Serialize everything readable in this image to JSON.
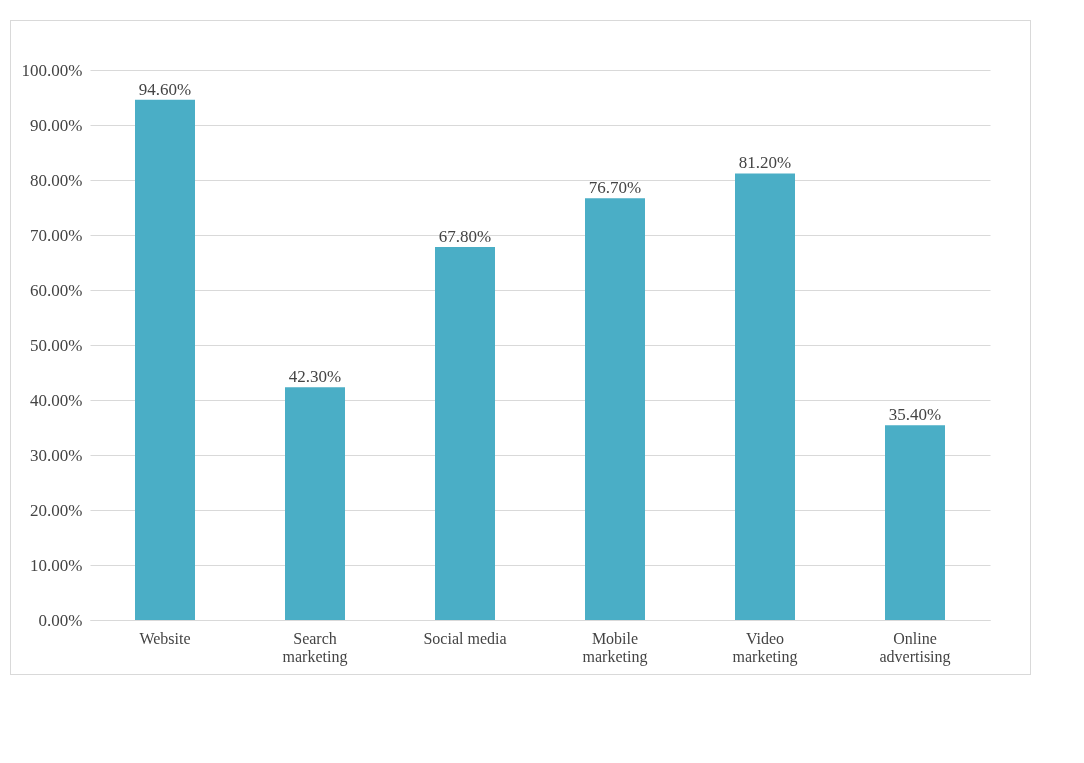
{
  "chart_data": {
    "type": "bar",
    "categories": [
      "Website",
      "Search marketing",
      "Social media",
      "Mobile marketing",
      "Video marketing",
      "Online advertising"
    ],
    "values": [
      94.6,
      42.3,
      67.8,
      76.7,
      81.2,
      35.4
    ],
    "value_labels": [
      "94.60%",
      "42.30%",
      "67.80%",
      "76.70%",
      "81.20%",
      "35.40%"
    ],
    "color": "#4aaec6",
    "ylim": [
      0,
      100
    ],
    "yticks": [
      {
        "value": 0,
        "label": "0.00%"
      },
      {
        "value": 10,
        "label": "10.00%"
      },
      {
        "value": 20,
        "label": "20.00%"
      },
      {
        "value": 30,
        "label": "30.00%"
      },
      {
        "value": 40,
        "label": "40.00%"
      },
      {
        "value": 50,
        "label": "50.00%"
      },
      {
        "value": 60,
        "label": "60.00%"
      },
      {
        "value": 70,
        "label": "70.00%"
      },
      {
        "value": 80,
        "label": "80.00%"
      },
      {
        "value": 90,
        "label": "90.00%"
      },
      {
        "value": 100,
        "label": "100.00%"
      }
    ],
    "grid": "y"
  }
}
